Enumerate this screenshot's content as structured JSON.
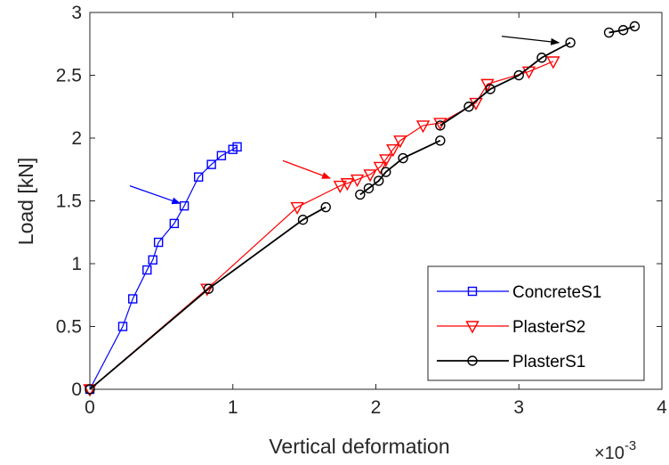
{
  "chart_data": {
    "type": "line",
    "title": "",
    "xlabel": "Vertical deformation",
    "ylabel": "Load [kN]",
    "x_exponent_label": "×10",
    "x_exponent_power": "-3",
    "xlim": [
      0,
      4
    ],
    "ylim": [
      0,
      3
    ],
    "x_ticks": [
      0,
      1,
      2,
      3,
      4
    ],
    "x_tick_labels": [
      "0",
      "1",
      "2",
      "3",
      "4"
    ],
    "y_ticks": [
      0,
      0.5,
      1,
      1.5,
      2,
      2.5,
      3
    ],
    "y_tick_labels": [
      "0",
      "0.5",
      "1",
      "1.5",
      "2",
      "2.5",
      "3"
    ],
    "grid": false,
    "legend_position": "bottom-right",
    "series": [
      {
        "name": "ConcreteS1",
        "color": "#0000ff",
        "marker": "square",
        "points": [
          [
            0,
            0
          ],
          [
            0.23,
            0.5
          ],
          [
            0.3,
            0.72
          ],
          [
            0.4,
            0.95
          ],
          [
            0.44,
            1.03
          ],
          [
            0.48,
            1.17
          ],
          [
            0.59,
            1.32
          ],
          [
            0.66,
            1.46
          ],
          [
            0.76,
            1.69
          ],
          [
            0.85,
            1.79
          ],
          [
            0.92,
            1.86
          ],
          [
            1.0,
            1.91
          ],
          [
            1.03,
            1.93
          ]
        ]
      },
      {
        "name": "PlasterS2",
        "color": "#ff0000",
        "marker": "triangle-down",
        "points": [
          [
            0,
            0
          ],
          [
            0.82,
            0.8
          ],
          [
            1.45,
            1.45
          ],
          [
            1.75,
            1.62
          ],
          [
            1.8,
            1.64
          ],
          [
            1.87,
            1.67
          ],
          [
            1.96,
            1.71
          ],
          [
            2.03,
            1.77
          ],
          [
            2.07,
            1.83
          ],
          [
            2.12,
            1.91
          ],
          [
            2.17,
            1.98
          ],
          [
            2.33,
            2.1
          ],
          [
            2.45,
            2.12
          ],
          [
            2.7,
            2.28
          ],
          [
            2.78,
            2.43
          ],
          [
            3.07,
            2.53
          ],
          [
            3.24,
            2.61
          ]
        ]
      },
      {
        "name": "PlasterS1",
        "color": "#000000",
        "marker": "circle",
        "points": [
          [
            0,
            0
          ],
          [
            0.83,
            0.8
          ],
          [
            1.49,
            1.35
          ],
          [
            1.65,
            1.45
          ],
          [
            null,
            null
          ],
          [
            1.89,
            1.55
          ],
          [
            1.95,
            1.6
          ],
          [
            2.02,
            1.66
          ],
          [
            2.07,
            1.73
          ],
          [
            2.19,
            1.84
          ],
          [
            2.45,
            1.98
          ],
          [
            null,
            null
          ],
          [
            2.45,
            2.1
          ],
          [
            2.65,
            2.25
          ],
          [
            2.8,
            2.39
          ],
          [
            3.0,
            2.5
          ],
          [
            3.16,
            2.64
          ],
          [
            3.36,
            2.76
          ],
          [
            null,
            null
          ],
          [
            3.63,
            2.84
          ],
          [
            3.73,
            2.86
          ],
          [
            3.81,
            2.89
          ]
        ]
      }
    ],
    "annotations": [
      {
        "type": "arrow",
        "color": "#0000ff",
        "from": [
          0.28,
          1.62
        ],
        "to": [
          0.63,
          1.48
        ]
      },
      {
        "type": "arrow",
        "color": "#ff0000",
        "from": [
          1.35,
          1.82
        ],
        "to": [
          1.68,
          1.68
        ]
      },
      {
        "type": "arrow",
        "color": "#000000",
        "from": [
          2.88,
          2.81
        ],
        "to": [
          3.28,
          2.76
        ]
      }
    ]
  }
}
